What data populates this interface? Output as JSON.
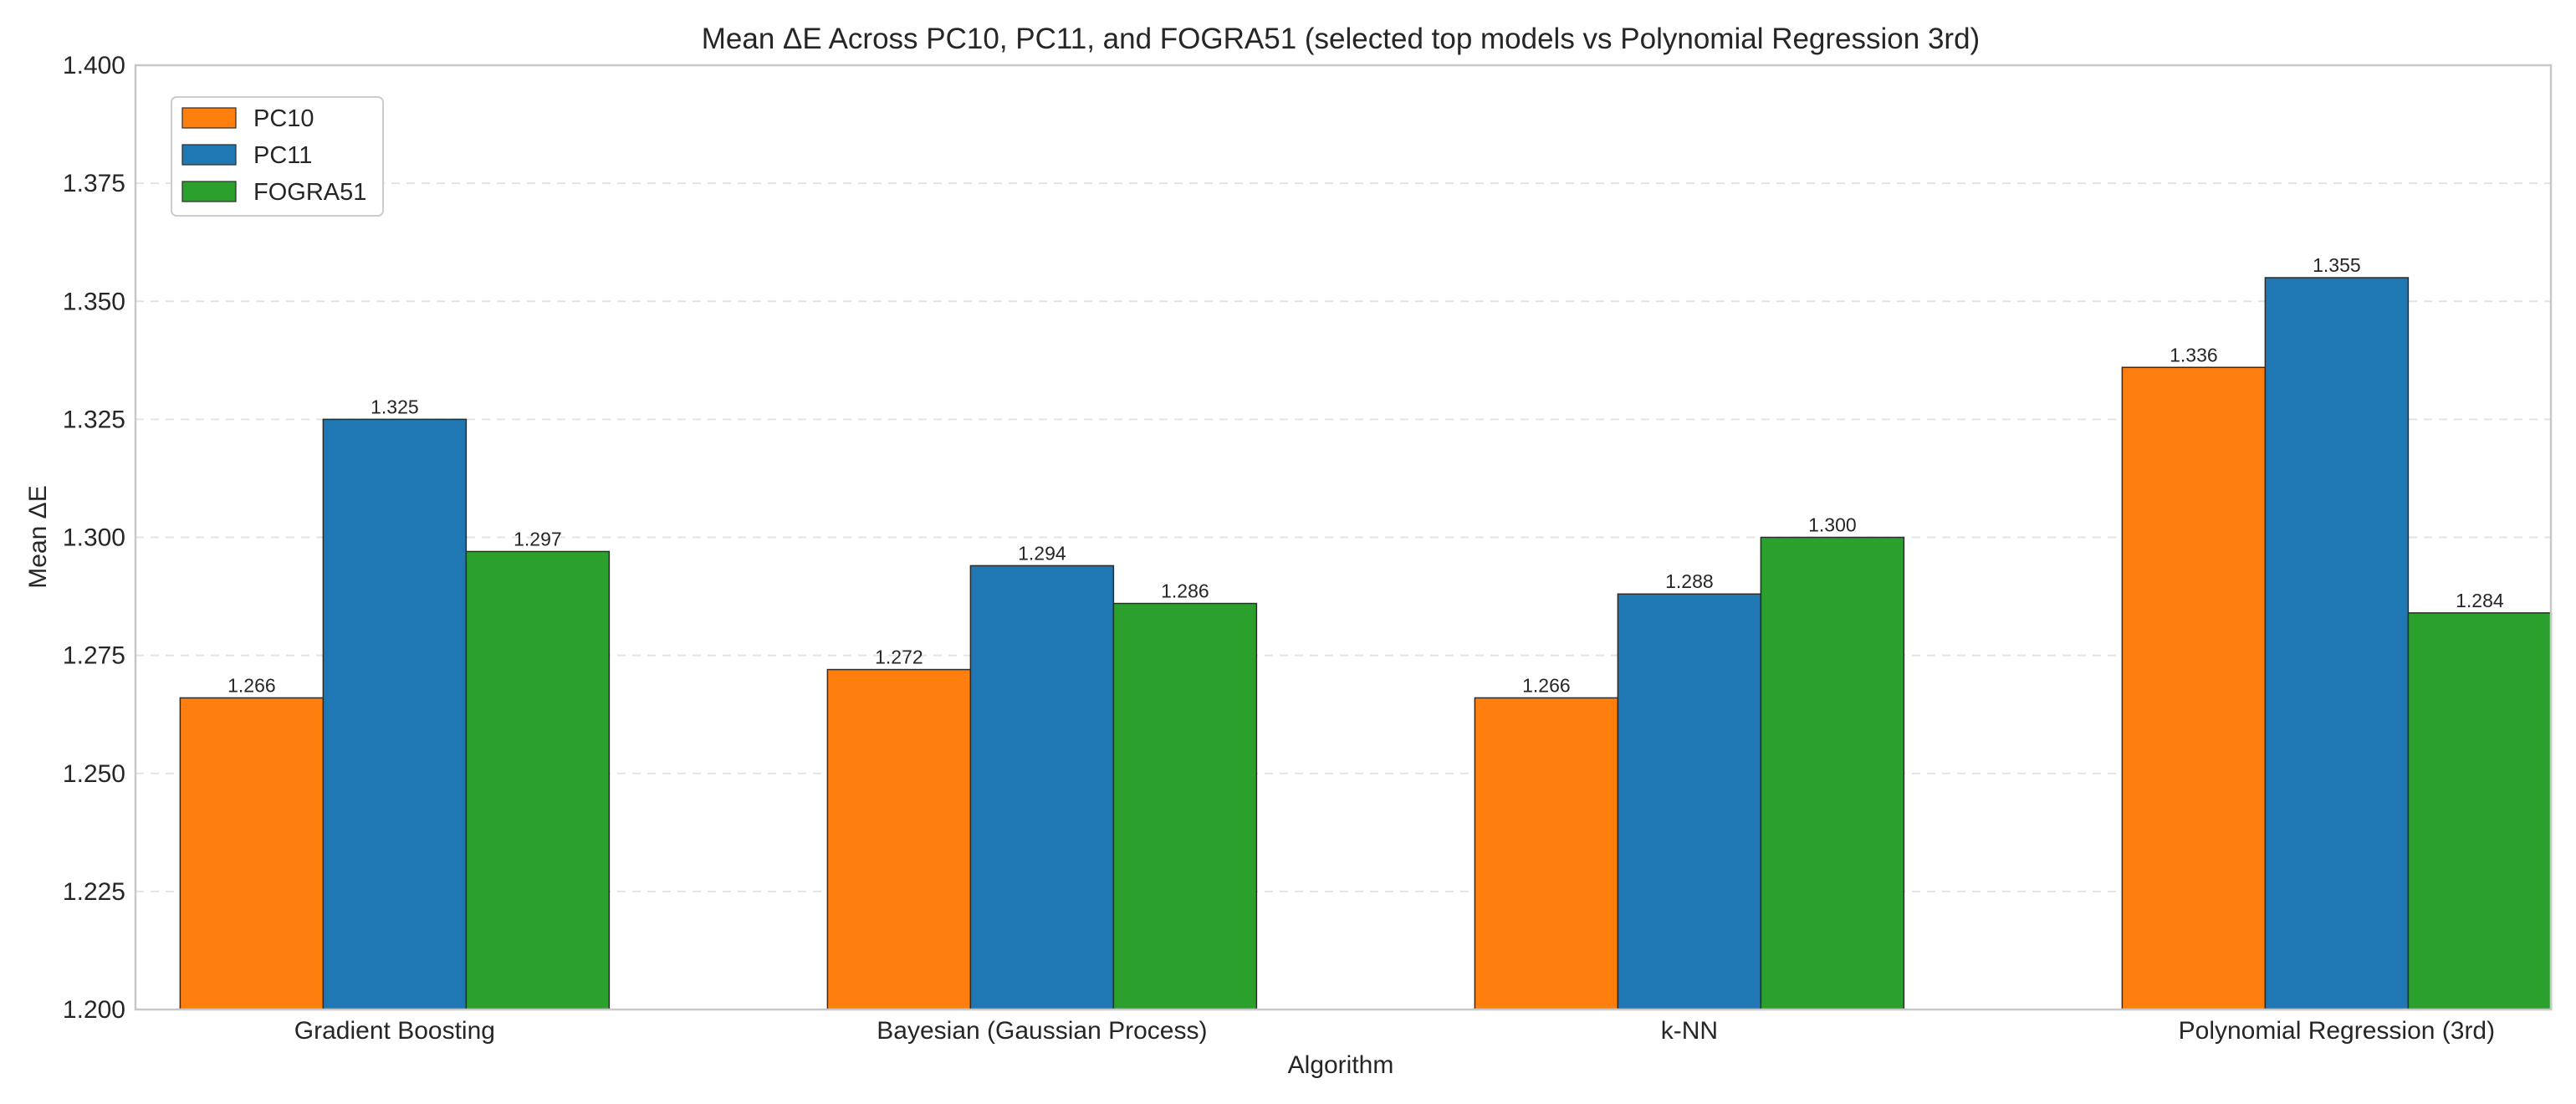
{
  "chart_data": {
    "type": "bar",
    "title": "Mean ΔE Across PC10, PC11, and FOGRA51 (selected top models vs Polynomial Regression 3rd)",
    "xlabel": "Algorithm",
    "ylabel": "Mean ΔE",
    "ylim": [
      1.2,
      1.4
    ],
    "yticks": [
      "1.200",
      "1.225",
      "1.250",
      "1.275",
      "1.300",
      "1.325",
      "1.350",
      "1.375",
      "1.400"
    ],
    "grid": true,
    "legend_position": "top-left",
    "categories": [
      "Gradient Boosting",
      "Bayesian (Gaussian Process)",
      "k-NN",
      "Polynomial Regression (3rd)"
    ],
    "series": [
      {
        "name": "PC10",
        "color": "#ff7f0e",
        "values": [
          1.266,
          1.272,
          1.266,
          1.336
        ],
        "labels": [
          "1.266",
          "1.272",
          "1.266",
          "1.336"
        ]
      },
      {
        "name": "PC11",
        "color": "#1f77b4",
        "values": [
          1.325,
          1.294,
          1.288,
          1.355
        ],
        "labels": [
          "1.325",
          "1.294",
          "1.288",
          "1.355"
        ]
      },
      {
        "name": "FOGRA51",
        "color": "#2ca02c",
        "values": [
          1.297,
          1.286,
          1.3,
          1.284
        ],
        "labels": [
          "1.297",
          "1.286",
          "1.300",
          "1.284"
        ]
      }
    ]
  }
}
